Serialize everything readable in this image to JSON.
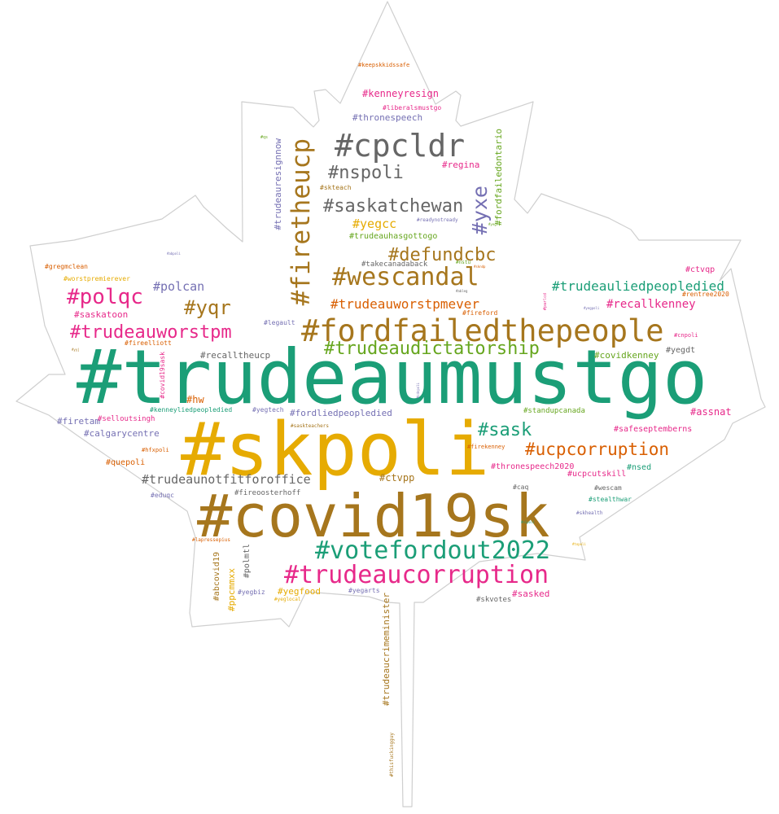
{
  "cloud": {
    "shape": "maple-leaf",
    "palette": [
      "#1b9e77",
      "#e6ab02",
      "#a6761d",
      "#e7298a",
      "#d95f02",
      "#666666",
      "#7570b3",
      "#66a61e"
    ],
    "words": [
      "#trudeaumustgo",
      "#skpoli",
      "#covid19sk",
      "#fordfailedthepeople",
      "#votefordout2022",
      "#trudeaucorruption",
      "#cpcldr",
      "#firetheucp",
      "#wescandal",
      "#nspoli",
      "#saskatchewan",
      "#yxe",
      "#defundcbc",
      "#trudeaudictatorship",
      "#polqc",
      "#trudeauworstpm",
      "#yqr",
      "#sask",
      "#ucpcorruption",
      "#trudeauliedpeopledied",
      "#trudeauworstpmever",
      "#trudeaunotfitforoffice",
      "#polcan",
      "#recallkenney",
      "#kenneyresign",
      "#thronespeech",
      "#liberalsmustgo",
      "#keepskkidssafe",
      "#regina",
      "#skteach",
      "#yegcc",
      "#trudeauhasgottogo",
      "#trudeauresignnow",
      "#fordfailedontario",
      "#readynotready",
      "#takecanadaback",
      "#nstu",
      "#gregmclean",
      "#worstpremierever",
      "#saskatoon",
      "#ctvqp",
      "#rentree2020",
      "#parlcd",
      "#fireford",
      "#legault",
      "#recalltheucp",
      "#covidkenney",
      "#yegdt",
      "#cnpoli",
      "#fireelliott",
      "#covid19sask",
      "#hw",
      "#kenneyliedpeopledied",
      "#yegtech",
      "#fordliedpeopledied",
      "#firetam",
      "#selloutsingh",
      "#calgarycentre",
      "#standupcanada",
      "#safeseptemberns",
      "#assnat",
      "#saskteachers",
      "#firekenney",
      "#thronespeech2020",
      "#ucpcutskill",
      "#nsed",
      "#hfxpoli",
      "#quepoli",
      "#ctvpp",
      "#caq",
      "#wescam",
      "#stealthwar",
      "#fireoosterhoff",
      "#eduqc",
      "#skhealth",
      "#lapressepius",
      "#abcovid19",
      "#ppcmmxx",
      "#polmtl",
      "#yegbiz",
      "#yegfood",
      "#yeglocal",
      "#yegarts",
      "#sasked",
      "#skvotes",
      "#trudeaucrimeminister",
      "#thisfuckingguy",
      "#qs",
      "#abpoli",
      "#yyj",
      "#cdnpoli",
      "#yegpoli",
      "#topoli",
      "#skndp",
      "#yeg",
      "#ableg",
      "#nlpoli"
    ]
  }
}
